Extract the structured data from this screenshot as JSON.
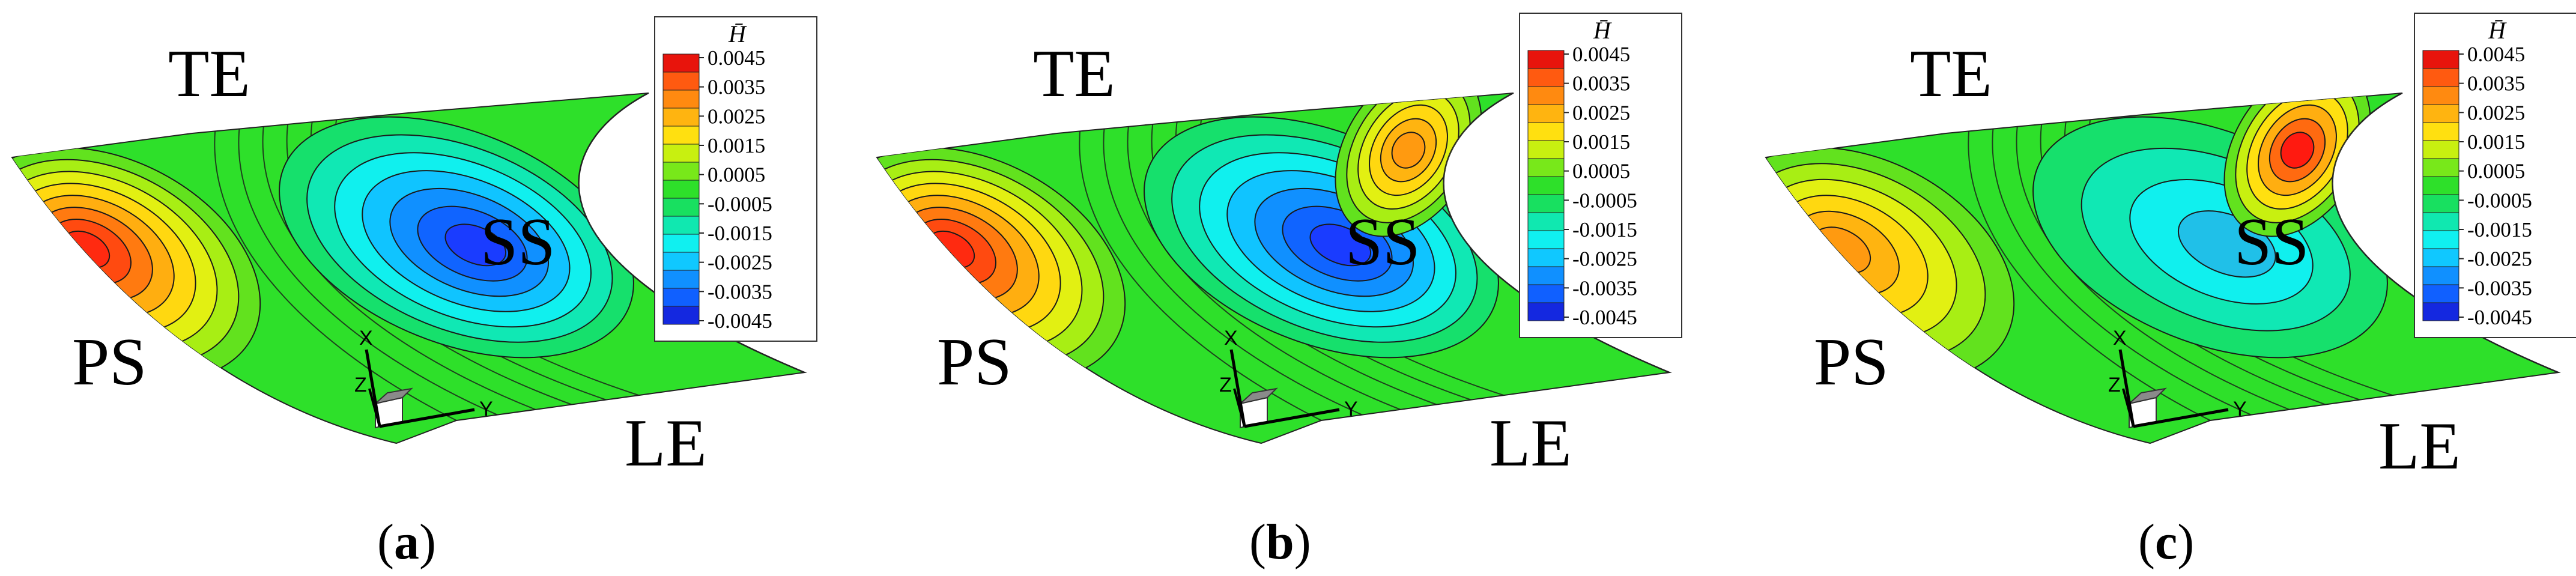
{
  "figure": {
    "panels": [
      {
        "id": "a",
        "caption": {
          "open": "(",
          "letter": "a",
          "close": ")"
        },
        "labels": {
          "TE": "TE",
          "SS": "SS",
          "PS": "PS",
          "LE": "LE"
        },
        "axes": {
          "x": "X",
          "y": "Y",
          "z": "Z"
        },
        "blobs": [
          {
            "role": "pressure-side-max",
            "color": "#ff2a10"
          },
          {
            "role": "suction-side-min",
            "color": "#1a3cff"
          }
        ]
      },
      {
        "id": "b",
        "caption": {
          "open": "(",
          "letter": "b",
          "close": ")"
        },
        "labels": {
          "TE": "TE",
          "SS": "SS",
          "PS": "PS",
          "LE": "LE"
        },
        "axes": {
          "x": "X",
          "y": "Y",
          "z": "Z"
        },
        "blobs": [
          {
            "role": "pressure-side-max",
            "color": "#ff2a10"
          },
          {
            "role": "suction-side-min",
            "color": "#1a3cff"
          },
          {
            "role": "trailing-edge-tip",
            "color": "#ffa010"
          }
        ]
      },
      {
        "id": "c",
        "caption": {
          "open": "(",
          "letter": "c",
          "close": ")"
        },
        "labels": {
          "TE": "TE",
          "SS": "SS",
          "PS": "PS",
          "LE": "LE"
        },
        "axes": {
          "x": "X",
          "y": "Y",
          "z": "Z"
        },
        "blobs": [
          {
            "role": "pressure-side-max",
            "color": "#ff9a10"
          },
          {
            "role": "suction-side-min",
            "color": "#20c0e8"
          },
          {
            "role": "trailing-edge-tip",
            "color": "#ff1a10"
          }
        ]
      }
    ],
    "legend": {
      "title": "H̄",
      "levels": [
        {
          "label": "0.0045",
          "color": "#e8140c"
        },
        {
          "label": "0.0035",
          "color": "#ff5a10"
        },
        {
          "label": "0.0035",
          "color": "#ff8a10"
        },
        {
          "label": "0.0025",
          "color": "#ffb410"
        },
        {
          "label": "0.0025",
          "color": "#ffe010"
        },
        {
          "label": "0.0015",
          "color": "#c8f010"
        },
        {
          "label": "0.0015",
          "color": "#78e81a"
        },
        {
          "label": "0.0005",
          "color": "#2ee02a"
        },
        {
          "label": "-0.0005",
          "color": "#18e060"
        },
        {
          "label": "-0.0005",
          "color": "#10e8b0"
        },
        {
          "label": "-0.0015",
          "color": "#10f0f0"
        },
        {
          "label": "-0.0015",
          "color": "#10c8ff"
        },
        {
          "label": "-0.0025",
          "color": "#1090ff"
        },
        {
          "label": "-0.0035",
          "color": "#1060ff"
        },
        {
          "label": "-0.0045",
          "color": "#1428e0"
        }
      ],
      "tick_labels": [
        "0.0045",
        "0.0035",
        "0.0025",
        "0.0015",
        "0.0005",
        "-0.0005",
        "-0.0015",
        "-0.0025",
        "-0.0035",
        "-0.0045"
      ]
    },
    "palette": {
      "surface_base": "#2ee02a",
      "contour_line": "#1a1a1a",
      "axis_box_light": "#ffffff",
      "axis_box_gray": "#8a8a8a"
    }
  }
}
